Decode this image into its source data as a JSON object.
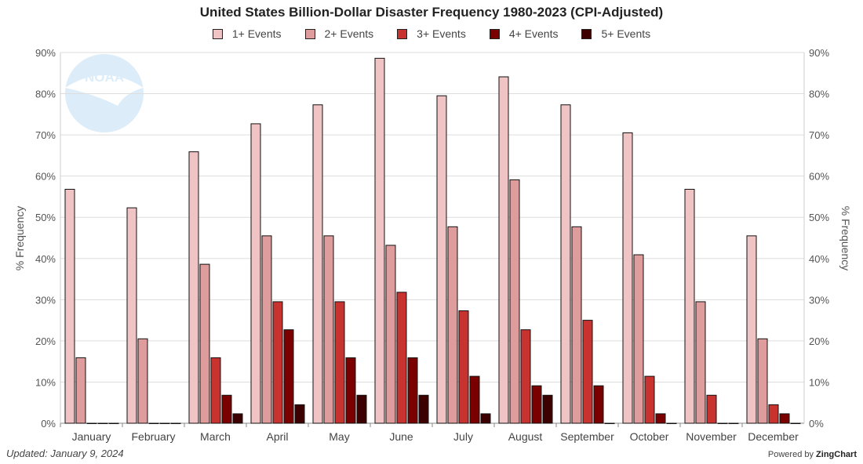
{
  "chart_data": {
    "type": "bar",
    "title": "United States Billion-Dollar Disaster Frequency 1980-2023 (CPI-Adjusted)",
    "ylabel": "% Frequency",
    "ylabel_right": "% Frequency",
    "ylim": [
      0,
      90
    ],
    "yticks": [
      "0%",
      "10%",
      "20%",
      "30%",
      "40%",
      "50%",
      "60%",
      "70%",
      "80%",
      "90%"
    ],
    "grid": true,
    "legend_placement": "top",
    "categories": [
      "January",
      "February",
      "March",
      "April",
      "May",
      "June",
      "July",
      "August",
      "September",
      "October",
      "November",
      "December"
    ],
    "series": [
      {
        "name": "1+ Events",
        "color": "#f0c4c4",
        "values": [
          56.8,
          52.3,
          65.9,
          72.7,
          77.3,
          88.6,
          79.5,
          84.1,
          77.3,
          70.5,
          56.8,
          45.5
        ]
      },
      {
        "name": "2+ Events",
        "color": "#de9c9c",
        "values": [
          15.9,
          20.5,
          38.6,
          45.5,
          45.5,
          43.2,
          47.7,
          59.1,
          47.7,
          40.9,
          29.5,
          20.5
        ]
      },
      {
        "name": "3+ Events",
        "color": "#c8322f",
        "values": [
          0,
          0,
          15.9,
          29.5,
          29.5,
          31.8,
          27.3,
          22.7,
          25.0,
          11.4,
          6.8,
          4.5
        ]
      },
      {
        "name": "4+ Events",
        "color": "#7a0000",
        "values": [
          0,
          0,
          6.8,
          22.7,
          15.9,
          15.9,
          11.4,
          9.1,
          9.1,
          2.3,
          0,
          2.3
        ]
      },
      {
        "name": "5+ Events",
        "color": "#3d0000",
        "values": [
          0,
          0,
          2.3,
          4.5,
          6.8,
          6.8,
          2.3,
          6.8,
          0,
          0,
          0,
          0
        ]
      }
    ]
  },
  "footer": {
    "updated": "Updated: January 9, 2024",
    "powered_prefix": "Powered by ",
    "powered_brand": "ZingChart"
  },
  "logo_text": "NOAA"
}
